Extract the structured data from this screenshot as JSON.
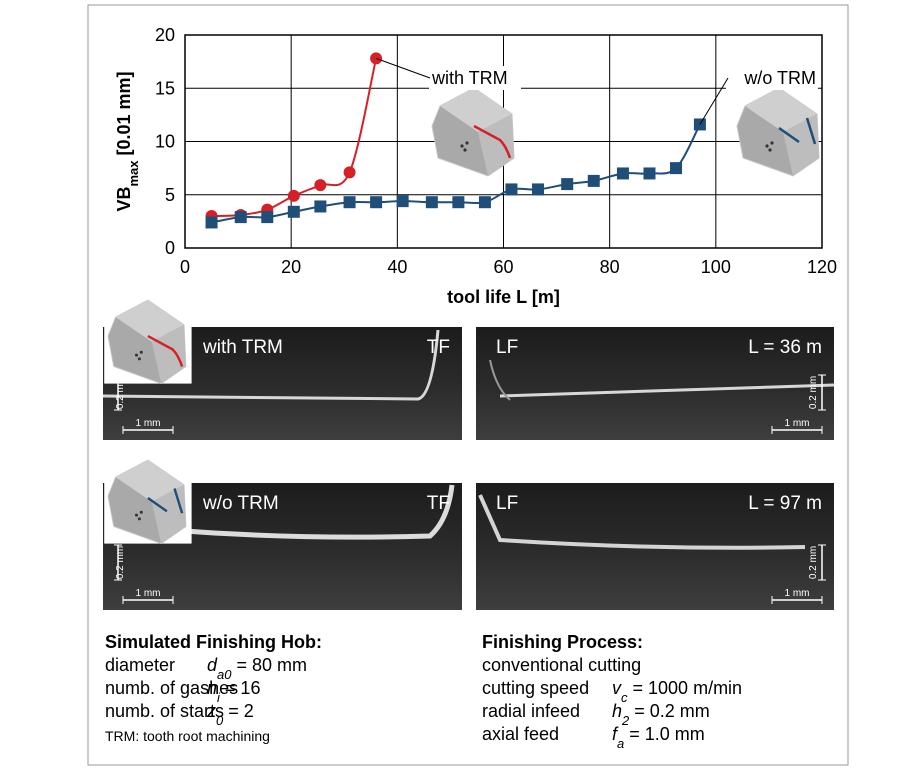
{
  "chart_data": {
    "type": "line",
    "x_label": "tool life L [m]",
    "y_label": {
      "main": "VB",
      "sub": "max",
      "unit": "[0.01 mm]"
    },
    "xlim": [
      0,
      120
    ],
    "xticks": [
      0,
      20,
      40,
      60,
      80,
      100,
      120
    ],
    "ylim": [
      0,
      20
    ],
    "yticks": [
      0,
      5,
      10,
      15,
      20
    ],
    "grid": true,
    "series": [
      {
        "name": "with TRM",
        "color": "#d62027",
        "marker": "circle",
        "x": [
          5,
          10.5,
          15.5,
          20.5,
          25.5,
          31,
          36
        ],
        "values": [
          3.0,
          3.1,
          3.6,
          4.9,
          5.9,
          7.1,
          17.8
        ]
      },
      {
        "name": "w/o TRM",
        "color": "#1f4e79",
        "marker": "square",
        "x": [
          5,
          10.5,
          15.5,
          20.5,
          25.5,
          31,
          36,
          41,
          46.5,
          51.5,
          56.5,
          61.5,
          66.5,
          72,
          77,
          82.5,
          87.5,
          92.5,
          97
        ],
        "values": [
          2.4,
          2.9,
          2.9,
          3.4,
          3.9,
          4.3,
          4.3,
          4.4,
          4.3,
          4.3,
          4.3,
          5.5,
          5.5,
          6.0,
          6.3,
          7.0,
          7.0,
          7.5,
          11.6
        ]
      }
    ]
  },
  "panels": [
    {
      "labels": [
        "with TRM",
        "TF"
      ],
      "scale_v": "0.2 mm",
      "scale_h": "1 mm"
    },
    {
      "labels": [
        "LF",
        "L = 36 m"
      ],
      "scale_v": "0.2 mm",
      "scale_h": "1 mm"
    },
    {
      "labels": [
        "w/o TRM",
        "TF"
      ],
      "scale_v": "0.2 mm",
      "scale_h": "1 mm"
    },
    {
      "labels": [
        "LF",
        "L = 97 m"
      ],
      "scale_v": "0.2 mm",
      "scale_h": "1 mm"
    }
  ],
  "info": {
    "left": {
      "heading": "Simulated Finishing Hob:",
      "rows": [
        {
          "label": "diameter",
          "symbol": "d",
          "sub": "a0",
          "value": "= 80 mm"
        },
        {
          "label": "numb. of gashes",
          "symbol": "n",
          "sub": "i",
          "value": "= 16"
        },
        {
          "label": "numb. of starts",
          "symbol": "z",
          "sub": "0",
          "value": "= 2"
        }
      ],
      "note": "TRM: tooth root machining"
    },
    "right": {
      "heading": "Finishing Process:",
      "intro": "conventional cutting",
      "rows": [
        {
          "label": "cutting speed",
          "symbol": "v",
          "sub": "c",
          "value": "= 1000 m/min"
        },
        {
          "label": "radial infeed",
          "symbol": "h",
          "sub": "2",
          "value": "= 0.2 mm"
        },
        {
          "label": "axial feed",
          "symbol": "f",
          "sub": "a",
          "value": "= 1.0 mm"
        }
      ]
    }
  }
}
